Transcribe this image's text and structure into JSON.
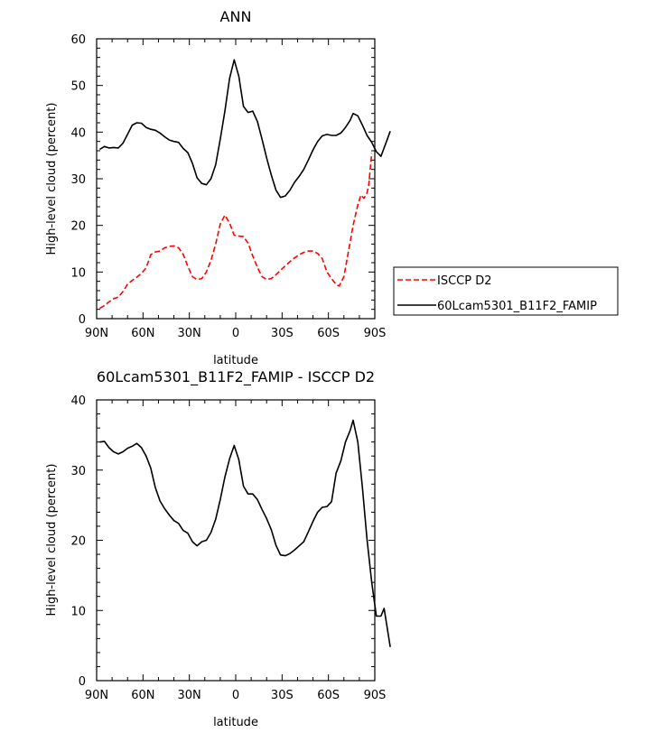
{
  "chart_data": [
    {
      "type": "line",
      "title": "ANN",
      "xlabel": "latitude",
      "ylabel": "High-level cloud (percent)",
      "xlim": [
        90,
        -90
      ],
      "ylim": [
        0,
        60
      ],
      "x_ticks": [
        {
          "value": 90,
          "label": "90N"
        },
        {
          "value": 60,
          "label": "60N"
        },
        {
          "value": 30,
          "label": "30N"
        },
        {
          "value": 0,
          "label": "0"
        },
        {
          "value": -30,
          "label": "30S"
        },
        {
          "value": -60,
          "label": "60S"
        },
        {
          "value": -90,
          "label": "90S"
        }
      ],
      "y_ticks": [
        {
          "value": 0,
          "label": "0"
        },
        {
          "value": 10,
          "label": "10"
        },
        {
          "value": 20,
          "label": "20"
        },
        {
          "value": 30,
          "label": "30"
        },
        {
          "value": 40,
          "label": "40"
        },
        {
          "value": 50,
          "label": "50"
        },
        {
          "value": 60,
          "label": "60"
        }
      ],
      "grid": false,
      "legend_placement": "outside-right",
      "series": [
        {
          "name": "ISCCP D2",
          "color": "#ff0000",
          "dash": "dashed",
          "points": [
            [
              88,
              2.2
            ],
            [
              85,
              2.8
            ],
            [
              82,
              3.6
            ],
            [
              79,
              4.3
            ],
            [
              76,
              4.6
            ],
            [
              73,
              5.8
            ],
            [
              70,
              7.4
            ],
            [
              67,
              8.2
            ],
            [
              64,
              8.9
            ],
            [
              61,
              9.7
            ],
            [
              58,
              10.9
            ],
            [
              55,
              13.7
            ],
            [
              52,
              14.3
            ],
            [
              49,
              14.5
            ],
            [
              46,
              15.2
            ],
            [
              43,
              15.5
            ],
            [
              40,
              15.6
            ],
            [
              37,
              15.2
            ],
            [
              34,
              13.8
            ],
            [
              31,
              11.2
            ],
            [
              28,
              9.0
            ],
            [
              25,
              8.4
            ],
            [
              22,
              8.6
            ],
            [
              19,
              10.0
            ],
            [
              16,
              12.5
            ],
            [
              13,
              16.0
            ],
            [
              10,
              20.3
            ],
            [
              7,
              22.2
            ],
            [
              4,
              20.5
            ],
            [
              1,
              17.9
            ],
            [
              -2,
              17.7
            ],
            [
              -5,
              17.6
            ],
            [
              -8,
              16.2
            ],
            [
              -11,
              13.5
            ],
            [
              -14,
              11.0
            ],
            [
              -17,
              9.0
            ],
            [
              -20,
              8.4
            ],
            [
              -23,
              8.6
            ],
            [
              -26,
              9.4
            ],
            [
              -29,
              10.4
            ],
            [
              -32,
              11.3
            ],
            [
              -35,
              12.2
            ],
            [
              -38,
              13.0
            ],
            [
              -41,
              13.7
            ],
            [
              -44,
              14.2
            ],
            [
              -47,
              14.5
            ],
            [
              -50,
              14.5
            ],
            [
              -53,
              14.0
            ],
            [
              -56,
              12.9
            ],
            [
              -59,
              10.0
            ],
            [
              -62,
              8.6
            ],
            [
              -65,
              7.3
            ],
            [
              -67,
              7.0
            ],
            [
              -70,
              9.0
            ],
            [
              -73,
              14.5
            ],
            [
              -76,
              20.0
            ],
            [
              -79,
              24.4
            ],
            [
              -81,
              26.5
            ],
            [
              -83,
              25.8
            ],
            [
              -85,
              27.0
            ],
            [
              -86,
              28.5
            ],
            [
              -88,
              35.5
            ]
          ]
        },
        {
          "name": "60Lcam5301_B11F2_FAMIP",
          "color": "#000000",
          "dash": "solid",
          "points": [
            [
              88,
              36.3
            ],
            [
              85,
              36.9
            ],
            [
              82,
              36.6
            ],
            [
              79,
              36.7
            ],
            [
              76,
              36.6
            ],
            [
              73,
              37.6
            ],
            [
              70,
              39.5
            ],
            [
              67,
              41.5
            ],
            [
              64,
              42.0
            ],
            [
              61,
              41.9
            ],
            [
              58,
              41.0
            ],
            [
              55,
              40.6
            ],
            [
              52,
              40.4
            ],
            [
              49,
              39.8
            ],
            [
              46,
              39.0
            ],
            [
              43,
              38.3
            ],
            [
              40,
              38.0
            ],
            [
              37,
              37.8
            ],
            [
              34,
              36.5
            ],
            [
              31,
              35.6
            ],
            [
              28,
              33.3
            ],
            [
              25,
              30.2
            ],
            [
              22,
              29.0
            ],
            [
              19,
              28.7
            ],
            [
              16,
              30.0
            ],
            [
              13,
              33.0
            ],
            [
              10,
              38.5
            ],
            [
              7,
              44.5
            ],
            [
              4,
              51.5
            ],
            [
              1,
              55.5
            ],
            [
              -2,
              52.0
            ],
            [
              -5,
              45.5
            ],
            [
              -8,
              44.2
            ],
            [
              -11,
              44.5
            ],
            [
              -14,
              42.3
            ],
            [
              -17,
              38.5
            ],
            [
              -20,
              34.5
            ],
            [
              -23,
              30.8
            ],
            [
              -26,
              27.6
            ],
            [
              -29,
              26.0
            ],
            [
              -32,
              26.3
            ],
            [
              -35,
              27.5
            ],
            [
              -38,
              29.2
            ],
            [
              -41,
              30.5
            ],
            [
              -44,
              32.0
            ],
            [
              -47,
              34.0
            ],
            [
              -50,
              36.2
            ],
            [
              -53,
              38.0
            ],
            [
              -56,
              39.2
            ],
            [
              -59,
              39.5
            ],
            [
              -62,
              39.3
            ],
            [
              -65,
              39.3
            ],
            [
              -68,
              39.8
            ],
            [
              -71,
              41.0
            ],
            [
              -74,
              42.5
            ],
            [
              -76,
              44.0
            ],
            [
              -79,
              43.5
            ],
            [
              -82,
              41.5
            ],
            [
              -85,
              39.3
            ],
            [
              -88,
              37.8
            ],
            [
              -91,
              35.8
            ],
            [
              -94,
              34.8
            ],
            [
              -97,
              37.5
            ],
            [
              -100,
              40.2
            ]
          ]
        }
      ]
    },
    {
      "type": "line",
      "title": "60Lcam5301_B11F2_FAMIP - ISCCP D2",
      "xlabel": "latitude",
      "ylabel": "High-level cloud (percent)",
      "xlim": [
        90,
        -90
      ],
      "ylim": [
        0,
        40
      ],
      "x_ticks": [
        {
          "value": 90,
          "label": "90N"
        },
        {
          "value": 60,
          "label": "60N"
        },
        {
          "value": 30,
          "label": "30N"
        },
        {
          "value": 0,
          "label": "0"
        },
        {
          "value": -30,
          "label": "30S"
        },
        {
          "value": -60,
          "label": "60S"
        },
        {
          "value": -90,
          "label": "90S"
        }
      ],
      "y_ticks": [
        {
          "value": 0,
          "label": "0"
        },
        {
          "value": 10,
          "label": "10"
        },
        {
          "value": 20,
          "label": "20"
        },
        {
          "value": 30,
          "label": "30"
        },
        {
          "value": 40,
          "label": "40"
        }
      ],
      "grid": false,
      "series": [
        {
          "color": "#000000",
          "dash": "solid",
          "points": [
            [
              88,
              34.0
            ],
            [
              85,
              34.1
            ],
            [
              82,
              33.2
            ],
            [
              79,
              32.6
            ],
            [
              76,
              32.3
            ],
            [
              73,
              32.6
            ],
            [
              70,
              33.1
            ],
            [
              67,
              33.4
            ],
            [
              64,
              33.8
            ],
            [
              61,
              33.2
            ],
            [
              58,
              32.0
            ],
            [
              55,
              30.3
            ],
            [
              52,
              27.5
            ],
            [
              49,
              25.6
            ],
            [
              46,
              24.5
            ],
            [
              43,
              23.6
            ],
            [
              40,
              22.8
            ],
            [
              37,
              22.4
            ],
            [
              34,
              21.4
            ],
            [
              31,
              21.0
            ],
            [
              28,
              19.8
            ],
            [
              25,
              19.2
            ],
            [
              22,
              19.8
            ],
            [
              19,
              20.0
            ],
            [
              16,
              21.1
            ],
            [
              13,
              23.0
            ],
            [
              10,
              25.8
            ],
            [
              7,
              29.0
            ],
            [
              4,
              31.6
            ],
            [
              1,
              33.5
            ],
            [
              -2,
              31.5
            ],
            [
              -5,
              27.7
            ],
            [
              -8,
              26.6
            ],
            [
              -11,
              26.6
            ],
            [
              -14,
              25.8
            ],
            [
              -17,
              24.4
            ],
            [
              -20,
              23.1
            ],
            [
              -23,
              21.5
            ],
            [
              -26,
              19.3
            ],
            [
              -29,
              17.9
            ],
            [
              -32,
              17.8
            ],
            [
              -35,
              18.1
            ],
            [
              -38,
              18.6
            ],
            [
              -41,
              19.2
            ],
            [
              -44,
              19.8
            ],
            [
              -47,
              21.2
            ],
            [
              -50,
              22.7
            ],
            [
              -53,
              24.0
            ],
            [
              -56,
              24.7
            ],
            [
              -59,
              24.8
            ],
            [
              -62,
              25.5
            ],
            [
              -65,
              29.6
            ],
            [
              -68,
              31.3
            ],
            [
              -71,
              34.0
            ],
            [
              -74,
              35.6
            ],
            [
              -76,
              37.1
            ],
            [
              -79,
              34.0
            ],
            [
              -82,
              27.5
            ],
            [
              -85,
              20.1
            ],
            [
              -88,
              14.0
            ],
            [
              -91,
              9.2
            ],
            [
              -94,
              9.2
            ],
            [
              -96,
              10.3
            ],
            [
              -100,
              4.8
            ]
          ]
        }
      ]
    }
  ]
}
